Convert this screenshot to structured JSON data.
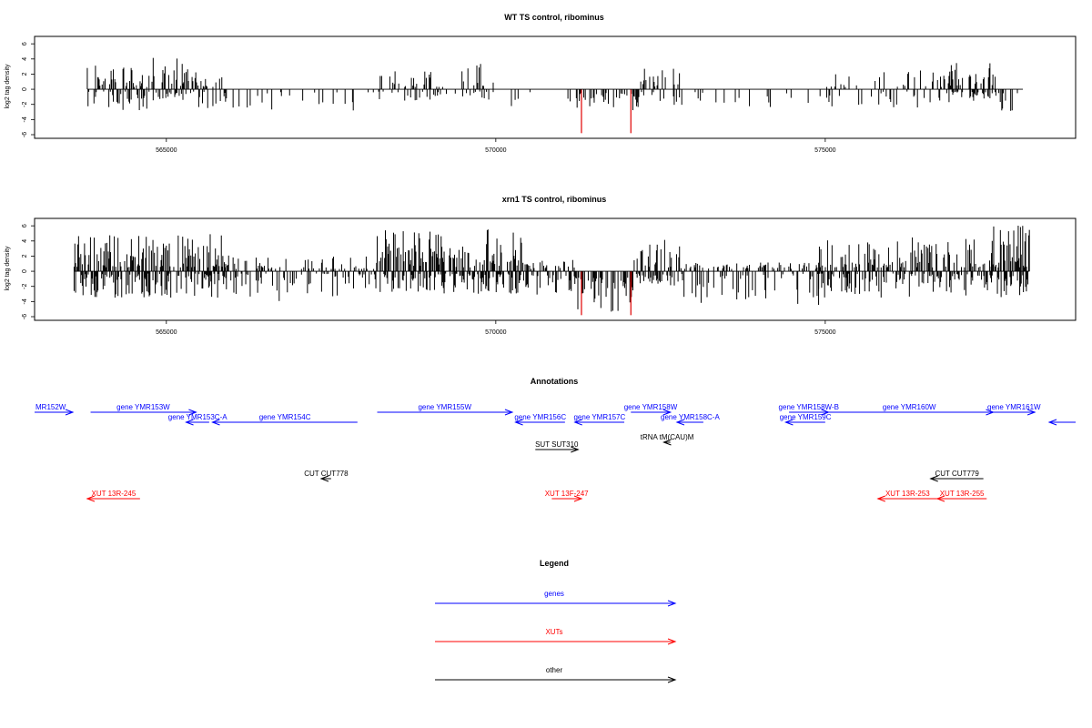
{
  "chart_data": [
    {
      "type": "bar",
      "title": "WT TS control, ribominus",
      "ylabel": "log2 tag density",
      "xlabel": "",
      "xlim": [
        563000,
        578800
      ],
      "ylim": [
        -6,
        6.5
      ],
      "x_ticks": [
        "565000",
        "570000",
        "575000"
      ],
      "x_tick_values": [
        565000,
        570000,
        575000
      ],
      "y_ticks": [
        "-6",
        "-4",
        "-2",
        "0",
        "2",
        "4",
        "6"
      ],
      "y_tick_values": [
        -6,
        -4,
        -2,
        0,
        2,
        4,
        6
      ],
      "baseline_range": [
        563800,
        578000
      ],
      "highlight_color": "#e00000",
      "bar_color": "#000000",
      "highlights": [
        {
          "x": 571300,
          "y": -5.8
        },
        {
          "x": 572050,
          "y": -5.8
        }
      ],
      "density_profile": [
        {
          "start": 563800,
          "end": 564800,
          "min_pos": 0.3,
          "max_pos": 3.2,
          "min_neg": 0.3,
          "max_neg": 2.8,
          "density": 0.6
        },
        {
          "start": 564800,
          "end": 565300,
          "min_pos": 0.3,
          "max_pos": 4.3,
          "min_neg": 0.3,
          "max_neg": 1.5,
          "density": 0.6
        },
        {
          "start": 565300,
          "end": 565900,
          "min_pos": 0.3,
          "max_pos": 2.8,
          "min_neg": 0.3,
          "max_neg": 2.5,
          "density": 0.5
        },
        {
          "start": 565900,
          "end": 566900,
          "min_pos": 0,
          "max_pos": 0,
          "min_neg": 0.3,
          "max_neg": 2.8,
          "density": 0.15
        },
        {
          "start": 566900,
          "end": 568200,
          "min_pos": 0,
          "max_pos": 0,
          "min_neg": 0.4,
          "max_neg": 2.8,
          "density": 0.12
        },
        {
          "start": 568200,
          "end": 570000,
          "min_pos": 0.3,
          "max_pos": 3.5,
          "min_neg": 0.3,
          "max_neg": 1.5,
          "density": 0.4
        },
        {
          "start": 570000,
          "end": 571200,
          "min_pos": 0,
          "max_pos": 0,
          "min_neg": 0.3,
          "max_neg": 2.5,
          "density": 0.12
        },
        {
          "start": 571200,
          "end": 572200,
          "min_pos": 0,
          "max_pos": 0,
          "min_neg": 0.5,
          "max_neg": 3.0,
          "density": 0.7
        },
        {
          "start": 572200,
          "end": 572800,
          "min_pos": 0.3,
          "max_pos": 3.2,
          "min_neg": 0.3,
          "max_neg": 2.5,
          "density": 0.4
        },
        {
          "start": 572800,
          "end": 575000,
          "min_pos": 0,
          "max_pos": 0,
          "min_neg": 0.3,
          "max_neg": 2.5,
          "density": 0.12
        },
        {
          "start": 575000,
          "end": 576800,
          "min_pos": 0.3,
          "max_pos": 2.5,
          "min_neg": 0.3,
          "max_neg": 2.5,
          "density": 0.25
        },
        {
          "start": 576800,
          "end": 577600,
          "min_pos": 0.3,
          "max_pos": 3.5,
          "min_neg": 0.3,
          "max_neg": 2.0,
          "density": 0.8
        },
        {
          "start": 577600,
          "end": 578000,
          "min_pos": 0,
          "max_pos": 0,
          "min_neg": 0.5,
          "max_neg": 3.2,
          "density": 0.9
        }
      ]
    },
    {
      "type": "bar",
      "title": "xrn1 TS control, ribominus",
      "ylabel": "log2 tag density",
      "xlabel": "",
      "xlim": [
        563000,
        578800
      ],
      "ylim": [
        -6,
        6.5
      ],
      "x_ticks": [
        "565000",
        "570000",
        "575000"
      ],
      "x_tick_values": [
        565000,
        570000,
        575000
      ],
      "y_ticks": [
        "-6",
        "-4",
        "-2",
        "0",
        "2",
        "4",
        "6"
      ],
      "y_tick_values": [
        -6,
        -4,
        -2,
        0,
        2,
        4,
        6
      ],
      "baseline_range": [
        563600,
        578100
      ],
      "highlight_color": "#e00000",
      "bar_color": "#000000",
      "highlights": [
        {
          "x": 571300,
          "y": -5.8
        },
        {
          "x": 572050,
          "y": -5.8
        }
      ],
      "density_profile": [
        {
          "start": 563600,
          "end": 565900,
          "min_pos": 0.5,
          "max_pos": 5.0,
          "min_neg": 0.3,
          "max_neg": 3.5,
          "density": 0.9
        },
        {
          "start": 565900,
          "end": 568200,
          "min_pos": 0.3,
          "max_pos": 2.2,
          "min_neg": 0.3,
          "max_neg": 4.0,
          "density": 0.5
        },
        {
          "start": 568200,
          "end": 570400,
          "min_pos": 0.5,
          "max_pos": 5.8,
          "min_neg": 0.3,
          "max_neg": 3.0,
          "density": 0.95
        },
        {
          "start": 570400,
          "end": 571200,
          "min_pos": 0.3,
          "max_pos": 1.5,
          "min_neg": 0.5,
          "max_neg": 3.5,
          "density": 0.6
        },
        {
          "start": 571200,
          "end": 572100,
          "min_pos": 0,
          "max_pos": 0,
          "min_neg": 0.8,
          "max_neg": 5.5,
          "density": 1.0
        },
        {
          "start": 572100,
          "end": 572800,
          "min_pos": 0.5,
          "max_pos": 4.2,
          "min_neg": 0.3,
          "max_neg": 2.0,
          "density": 0.8
        },
        {
          "start": 572800,
          "end": 574900,
          "min_pos": 0.3,
          "max_pos": 1.2,
          "min_neg": 0.3,
          "max_neg": 4.8,
          "density": 0.5
        },
        {
          "start": 574900,
          "end": 577500,
          "min_pos": 0.5,
          "max_pos": 4.5,
          "min_neg": 0.3,
          "max_neg": 3.5,
          "density": 0.85
        },
        {
          "start": 577500,
          "end": 578100,
          "min_pos": 0.5,
          "max_pos": 6.2,
          "min_neg": 0.5,
          "max_neg": 4.0,
          "density": 0.95
        }
      ]
    },
    {
      "type": "annotation_track",
      "title": "Annotations",
      "xlim": [
        563000,
        578800
      ],
      "colors": {
        "gene": "#0000ff",
        "xut": "#ff0000",
        "other": "#000000"
      },
      "features": [
        {
          "label": "MR152W",
          "start": 563000,
          "end": 563580,
          "dir": "+",
          "cat": "gene",
          "row": 0,
          "label_at": "start"
        },
        {
          "label": "gene YMR153W",
          "start": 563850,
          "end": 565450,
          "dir": "+",
          "cat": "gene",
          "row": 0,
          "label_at": "center"
        },
        {
          "label": "gene YMR153C-A",
          "start": 565300,
          "end": 565650,
          "dir": "-",
          "cat": "gene",
          "row": 1,
          "label_at": "center"
        },
        {
          "label": "gene YMR154C",
          "start": 565700,
          "end": 567900,
          "dir": "-",
          "cat": "gene",
          "row": 1,
          "label_at": "center"
        },
        {
          "label": "gene YMR155W",
          "start": 568200,
          "end": 570250,
          "dir": "+",
          "cat": "gene",
          "row": 0,
          "label_at": "center"
        },
        {
          "label": "gene YMR156C",
          "start": 570300,
          "end": 571050,
          "dir": "-",
          "cat": "gene",
          "row": 1,
          "label_at": "center"
        },
        {
          "label": "gene YMR157C",
          "start": 571200,
          "end": 571950,
          "dir": "-",
          "cat": "gene",
          "row": 1,
          "label_at": "center"
        },
        {
          "label": "gene YMR158W",
          "start": 572050,
          "end": 572650,
          "dir": "+",
          "cat": "gene",
          "row": 0,
          "label_at": "center"
        },
        {
          "label": "gene YMR158C-A",
          "start": 572750,
          "end": 573150,
          "dir": "-",
          "cat": "gene",
          "row": 1,
          "label_at": "center"
        },
        {
          "label": "gene YMR158W-B",
          "start": 574450,
          "end": 575050,
          "dir": "+",
          "cat": "gene",
          "row": 0,
          "label_at": "center"
        },
        {
          "label": "gene YMR159C",
          "start": 574400,
          "end": 575000,
          "dir": "-",
          "cat": "gene",
          "row": 1,
          "label_at": "center"
        },
        {
          "label": "gene YMR160W",
          "start": 575000,
          "end": 577550,
          "dir": "+",
          "cat": "gene",
          "row": 0,
          "label_at": "center"
        },
        {
          "label": "gene YMR161W",
          "start": 577550,
          "end": 578180,
          "dir": "+",
          "cat": "gene",
          "row": 0,
          "label_at": "center"
        },
        {
          "label": "",
          "start": 578400,
          "end": 578800,
          "dir": "-",
          "cat": "gene",
          "row": 1,
          "label_at": "none"
        },
        {
          "label": "tRNA tM(CAU)M",
          "start": 572550,
          "end": 572650,
          "dir": "-",
          "cat": "other",
          "row": 2,
          "label_at": "center"
        },
        {
          "label": "SUT SUT310",
          "start": 570600,
          "end": 571250,
          "dir": "+",
          "cat": "other",
          "row": 3,
          "label_at": "center"
        },
        {
          "label": "CUT CUT778",
          "start": 567350,
          "end": 567500,
          "dir": "-",
          "cat": "other",
          "row": 4,
          "label_at": "center"
        },
        {
          "label": "CUT CUT779",
          "start": 576600,
          "end": 577400,
          "dir": "-",
          "cat": "other",
          "row": 4,
          "label_at": "center"
        },
        {
          "label": "XUT 13R-245",
          "start": 563800,
          "end": 564600,
          "dir": "-",
          "cat": "xut",
          "row": 5,
          "label_at": "center"
        },
        {
          "label": "XUT 13F-247",
          "start": 570850,
          "end": 571300,
          "dir": "+",
          "cat": "xut",
          "row": 5,
          "label_at": "center"
        },
        {
          "label": "XUT 13R-253",
          "start": 575800,
          "end": 576700,
          "dir": "-",
          "cat": "xut",
          "row": 5,
          "label_at": "center"
        },
        {
          "label": "XUT 13R-255",
          "start": 576700,
          "end": 577450,
          "dir": "-",
          "cat": "xut",
          "row": 5,
          "label_at": "center"
        }
      ]
    },
    {
      "type": "legend",
      "title": "Legend",
      "entries": [
        {
          "label": "genes",
          "color": "#0000ff"
        },
        {
          "label": "XUTs",
          "color": "#ff0000"
        },
        {
          "label": "other",
          "color": "#000000"
        }
      ]
    }
  ]
}
